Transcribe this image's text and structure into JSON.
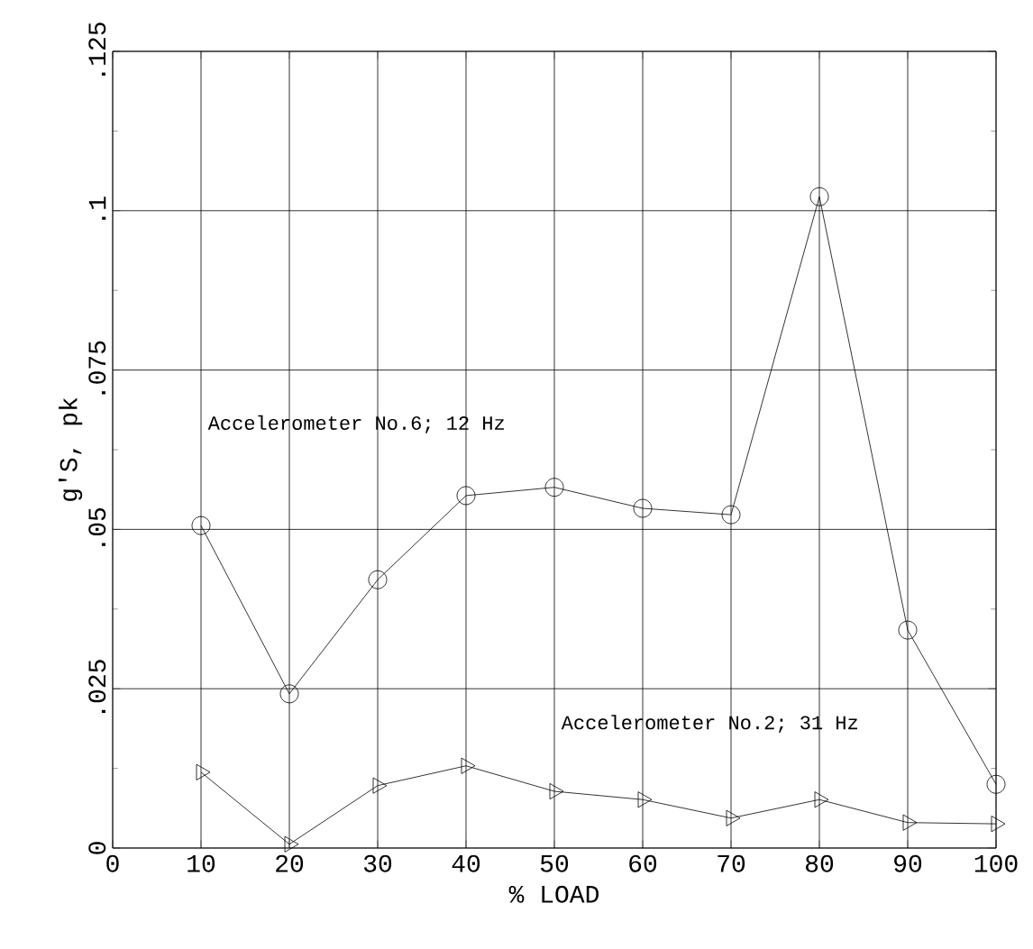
{
  "chart_data": {
    "type": "line",
    "xlabel": "% LOAD",
    "ylabel": "g'S, pk",
    "x": [
      10,
      20,
      30,
      40,
      50,
      60,
      70,
      80,
      90,
      100
    ],
    "series": [
      {
        "name": "Accelerometer No.6; 12 Hz",
        "color": "#000000",
        "marker": "circle",
        "values": [
          0.0506,
          0.0242,
          0.0421,
          0.0553,
          0.0566,
          0.0533,
          0.0523,
          0.1022,
          0.0342,
          0.01
        ]
      },
      {
        "name": "Accelerometer No.2; 31 Hz",
        "color": "#000000",
        "marker": "triangle",
        "values": [
          0.0119,
          0.0006,
          0.0098,
          0.0129,
          0.0089,
          0.0076,
          0.0047,
          0.0076,
          0.004,
          0.0038
        ]
      }
    ],
    "xlim": [
      0,
      100
    ],
    "ylim": [
      0,
      0.125
    ],
    "xticks": [
      0,
      10,
      20,
      30,
      40,
      50,
      60,
      70,
      80,
      90,
      100
    ],
    "yticks": [
      0,
      {
        "value": 0.025,
        "label": ".025"
      },
      {
        "value": 0.05,
        "label": ".05"
      },
      {
        "value": 0.075,
        "label": ".075"
      },
      {
        "value": 0.1,
        "label": ".1"
      },
      {
        "value": 0.125,
        "label": ".125"
      }
    ],
    "grid": true
  }
}
